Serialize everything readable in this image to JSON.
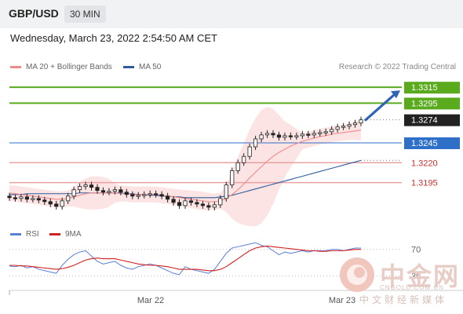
{
  "header": {
    "pair": "GBP/USD",
    "timeframe": "30 MIN"
  },
  "datetime": "Wednesday, March 23, 2022 2:54:50 AM CET",
  "legend": {
    "ma20_bb": "MA 20 + Bollinger Bands",
    "ma50": "MA 50",
    "source": "Research © 2022 Trading Central",
    "rsi": "RSI",
    "rsi_ma": "9MA"
  },
  "colors": {
    "ma20": "#f08a8a",
    "ma50": "#2e5c9e",
    "bands": "#fde4e4",
    "green": "#5aaa1e",
    "blue_level": "#2e6fc7",
    "red_level": "#e8a0a0",
    "current": "#222222"
  },
  "watermark": {
    "cn": "中金网",
    "url": "CNGOLD.COM.CN",
    "sub": "中文财经新媒体"
  },
  "chart_data": {
    "type": "candlestick",
    "x_ticks": [
      "Mar 22",
      "Mar 23"
    ],
    "y_range": [
      1.316,
      1.333
    ],
    "levels": [
      {
        "value": 1.3315,
        "label": "1.3315",
        "kind": "resistance"
      },
      {
        "value": 1.3295,
        "label": "1.3295",
        "kind": "resistance"
      },
      {
        "value": 1.3274,
        "label": "1.3274",
        "kind": "current"
      },
      {
        "value": 1.3245,
        "label": "1.3245",
        "kind": "pivot"
      },
      {
        "value": 1.322,
        "label": "1.3220",
        "kind": "support"
      },
      {
        "value": 1.3195,
        "label": "1.3195",
        "kind": "support"
      }
    ],
    "close": [
      1.3176,
      1.3175,
      1.3177,
      1.3174,
      1.3175,
      1.3173,
      1.3171,
      1.3168,
      1.3165,
      1.3172,
      1.3178,
      1.3186,
      1.319,
      1.3192,
      1.3189,
      1.3185,
      1.3183,
      1.3184,
      1.3186,
      1.3183,
      1.318,
      1.3178,
      1.3179,
      1.318,
      1.3181,
      1.318,
      1.3178,
      1.3174,
      1.317,
      1.3166,
      1.3172,
      1.317,
      1.3168,
      1.3166,
      1.3164,
      1.3167,
      1.3175,
      1.3192,
      1.321,
      1.322,
      1.3228,
      1.324,
      1.325,
      1.3255,
      1.3257,
      1.3255,
      1.3252,
      1.3254,
      1.3253,
      1.3254,
      1.3256,
      1.3255,
      1.3257,
      1.3258,
      1.3259,
      1.3262,
      1.3265,
      1.3266,
      1.3268,
      1.327,
      1.3274
    ],
    "ma20": [
      1.3182,
      1.3181,
      1.318,
      1.3179,
      1.3178,
      1.3177,
      1.3176,
      1.3175,
      1.3174,
      1.3174,
      1.3175,
      1.3177,
      1.3179,
      1.3181,
      1.3182,
      1.3182,
      1.3182,
      1.3182,
      1.3182,
      1.3181,
      1.3181,
      1.318,
      1.318,
      1.318,
      1.318,
      1.318,
      1.3179,
      1.3178,
      1.3177,
      1.3176,
      1.3175,
      1.3174,
      1.3173,
      1.3172,
      1.3171,
      1.3171,
      1.3172,
      1.3175,
      1.318,
      1.3186,
      1.3193,
      1.3201,
      1.3208,
      1.3215,
      1.3222,
      1.3228,
      1.3233,
      1.3237,
      1.3241,
      1.3244,
      1.3247,
      1.3249,
      1.3251,
      1.3253,
      1.3254,
      1.3256,
      1.3257,
      1.3258,
      1.3259,
      1.326,
      1.3261
    ],
    "ma50": [
      1.318,
      1.318,
      1.318,
      1.3181,
      1.3181,
      1.3181,
      1.3181,
      1.3181,
      1.3181,
      1.3181,
      1.3181,
      1.3181,
      1.3182,
      1.3182,
      1.3182,
      1.3182,
      1.3182,
      1.3182,
      1.3182,
      1.3182,
      1.3181,
      1.3181,
      1.318,
      1.318,
      1.3179,
      1.3179,
      1.3178,
      1.3178,
      1.3177,
      1.3177,
      1.3176,
      1.3176,
      1.3176,
      1.3176,
      1.3176,
      1.3176,
      1.3177,
      1.3178,
      1.3179,
      1.3181,
      1.3183,
      1.3185,
      1.3187,
      1.3189,
      1.3191,
      1.3193,
      1.3195,
      1.3197,
      1.3199,
      1.3201,
      1.3203,
      1.3205,
      1.3207,
      1.3209,
      1.3211,
      1.3213,
      1.3215,
      1.3217,
      1.3219,
      1.3221,
      1.3223
    ],
    "rsi_axis_labels": [
      "70",
      "30"
    ],
    "rsi": [
      45,
      44,
      46,
      42,
      44,
      40,
      38,
      36,
      34,
      46,
      55,
      62,
      66,
      68,
      60,
      52,
      48,
      50,
      52,
      46,
      42,
      40,
      44,
      46,
      48,
      46,
      42,
      38,
      34,
      32,
      44,
      40,
      38,
      36,
      34,
      40,
      52,
      64,
      72,
      74,
      76,
      78,
      80,
      76,
      74,
      68,
      62,
      66,
      64,
      66,
      68,
      66,
      68,
      68,
      68,
      70,
      70,
      68,
      70,
      72,
      72
    ],
    "rsi_ma": [
      46,
      46,
      45,
      45,
      44,
      43,
      42,
      41,
      40,
      41,
      43,
      46,
      50,
      54,
      56,
      57,
      56,
      56,
      56,
      54,
      52,
      50,
      48,
      47,
      46,
      46,
      45,
      44,
      42,
      40,
      40,
      40,
      40,
      39,
      38,
      38,
      40,
      44,
      50,
      56,
      62,
      68,
      72,
      74,
      75,
      74,
      73,
      72,
      71,
      70,
      69,
      68,
      68,
      67,
      67,
      68,
      68,
      68,
      69,
      70,
      70
    ]
  }
}
